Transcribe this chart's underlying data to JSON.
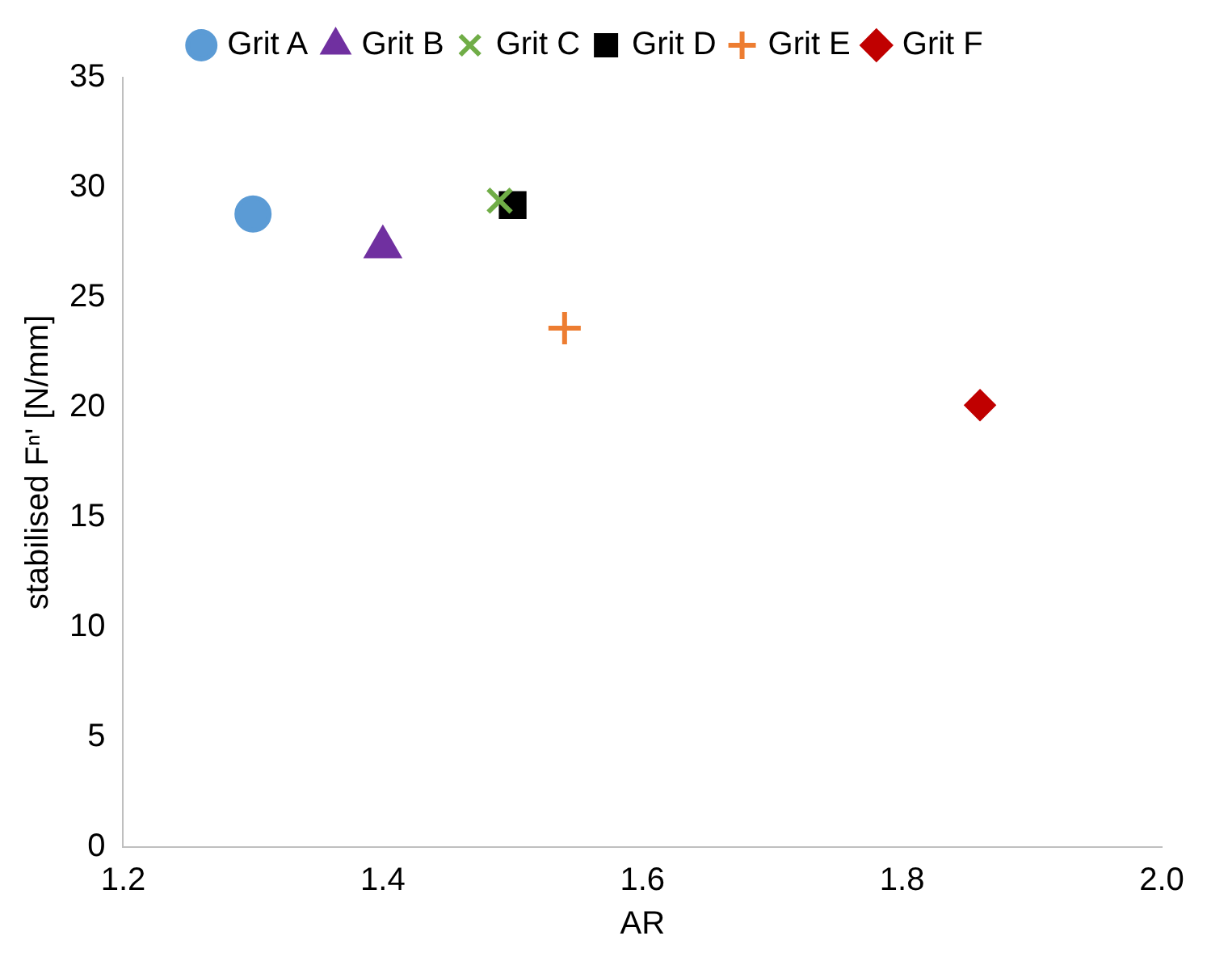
{
  "chart_data": {
    "type": "scatter",
    "xlabel": "AR",
    "ylabel": "stabilised Fⁿ' [N/mm]",
    "xlim": [
      1.2,
      2.0
    ],
    "xticks": [
      {
        "value": 1.2,
        "label": "1.2"
      },
      {
        "value": 1.4,
        "label": "1.4"
      },
      {
        "value": 1.6,
        "label": "1.6"
      },
      {
        "value": 1.8,
        "label": "1.8"
      },
      {
        "value": 2.0,
        "label": "2.0"
      }
    ],
    "ylim": [
      0,
      35
    ],
    "yticks": [
      0,
      5,
      10,
      15,
      20,
      25,
      30,
      35
    ],
    "grid": false,
    "legend": "top",
    "series": [
      {
        "name": "Grit A",
        "color": "#5b9bd5",
        "marker": "circle",
        "x": [
          1.3
        ],
        "values": [
          28.8
        ]
      },
      {
        "name": "Grit B",
        "color": "#7030a0",
        "marker": "triangle",
        "x": [
          1.4
        ],
        "values": [
          27.3
        ]
      },
      {
        "name": "Grit C",
        "color": "#70ad47",
        "marker": "cross",
        "x": [
          1.49
        ],
        "values": [
          29.4
        ]
      },
      {
        "name": "Grit D",
        "color": "#000000",
        "marker": "square",
        "x": [
          1.5
        ],
        "values": [
          29.2
        ]
      },
      {
        "name": "Grit E",
        "color": "#ed7d31",
        "marker": "plus",
        "x": [
          1.54
        ],
        "values": [
          23.6
        ]
      },
      {
        "name": "Grit F",
        "color": "#c00000",
        "marker": "diamond",
        "x": [
          1.86
        ],
        "values": [
          20.1
        ]
      }
    ]
  }
}
